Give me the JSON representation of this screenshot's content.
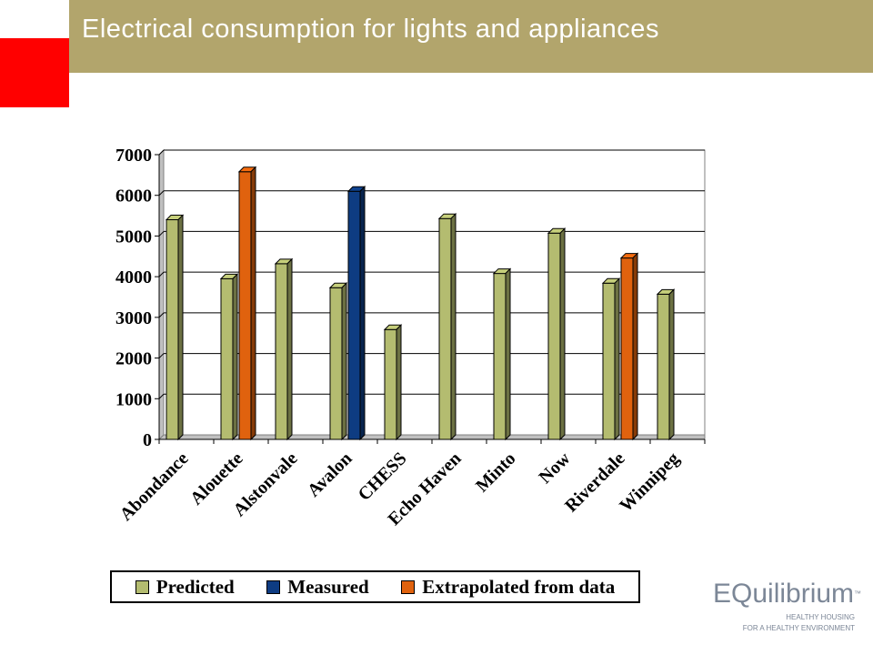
{
  "header": {
    "title": "Electrical consumption for lights and appliances"
  },
  "colors": {
    "header_bg": "#b2a56c",
    "accent_red": "#ff0000",
    "predicted": "#b4bc70",
    "measured": "#0e3c82",
    "extrapolated": "#e0620e"
  },
  "logo": {
    "brand": "EQuilibrium",
    "tm": "™",
    "tagline_1": "HEALTHY HOUSING",
    "tagline_2": "FOR A HEALTHY ENVIRONMENT"
  },
  "chart_data": {
    "type": "bar",
    "title": "",
    "xlabel": "",
    "ylabel": "",
    "ylim": [
      0,
      7000
    ],
    "yticks": [
      0,
      1000,
      2000,
      3000,
      4000,
      5000,
      6000,
      7000
    ],
    "grid": true,
    "legend_position": "bottom",
    "categories": [
      "Abondance",
      "Alouette",
      "Alstonvale",
      "Avalon",
      "CHESS",
      "Echo Haven",
      "Minto",
      "Now",
      "Riverdale",
      "Winnipeg"
    ],
    "series": [
      {
        "name": "Predicted",
        "color": "#b4bc70",
        "values": [
          5400,
          3950,
          4320,
          3730,
          2700,
          5430,
          4080,
          5070,
          3840,
          3570
        ]
      },
      {
        "name": "Measured",
        "color": "#0e3c82",
        "values": [
          0,
          0,
          0,
          6100,
          0,
          0,
          0,
          0,
          0,
          0
        ]
      },
      {
        "name": "Extrapolated from data",
        "color": "#e0620e",
        "values": [
          0,
          6580,
          0,
          0,
          0,
          0,
          0,
          0,
          4460,
          0
        ]
      }
    ]
  }
}
